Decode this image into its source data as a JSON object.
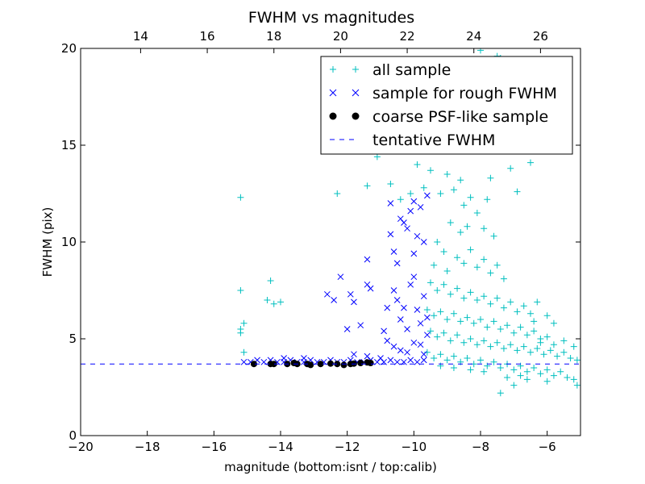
{
  "chart_data": {
    "type": "scatter",
    "title": "FWHM vs magnitudes",
    "xlabel": "magnitude (bottom:isnt / top:calib)",
    "ylabel": "FWHM (pix)",
    "xlim": [
      -20,
      -5
    ],
    "ylim": [
      0,
      20
    ],
    "x_ticks": [
      -20,
      -18,
      -16,
      -14,
      -12,
      -10,
      -8,
      -6
    ],
    "y_ticks": [
      0,
      5,
      10,
      15,
      20
    ],
    "top_axis": {
      "offset_from_bottom": 32.2,
      "ticks": [
        14,
        16,
        18,
        20,
        22,
        24,
        26
      ]
    },
    "grid": false,
    "legend_position": "top-right",
    "tentative_fwhm": 3.7,
    "series": [
      {
        "name": "all sample",
        "marker": "+",
        "color": "#00bfbf",
        "points": [
          [
            -15.2,
            12.3
          ],
          [
            -15.2,
            7.5
          ],
          [
            -15.1,
            5.8
          ],
          [
            -15.2,
            5.5
          ],
          [
            -15.2,
            5.3
          ],
          [
            -15.1,
            4.3
          ],
          [
            -14.3,
            8.0
          ],
          [
            -14.4,
            7.0
          ],
          [
            -14.2,
            6.8
          ],
          [
            -14.0,
            6.9
          ],
          [
            -12.3,
            12.5
          ],
          [
            -11.4,
            12.9
          ],
          [
            -11.1,
            14.4
          ],
          [
            -10.7,
            13.0
          ],
          [
            -10.6,
            15.0
          ],
          [
            -10.3,
            14.8
          ],
          [
            -10.1,
            12.5
          ],
          [
            -10.4,
            12.2
          ],
          [
            -9.9,
            14.0
          ],
          [
            -9.7,
            12.8
          ],
          [
            -9.5,
            13.7
          ],
          [
            -9.2,
            12.5
          ],
          [
            -9.0,
            13.5
          ],
          [
            -8.8,
            12.7
          ],
          [
            -8.6,
            13.2
          ],
          [
            -8.5,
            11.9
          ],
          [
            -8.3,
            12.3
          ],
          [
            -8.2,
            14.7
          ],
          [
            -8.0,
            19.9
          ],
          [
            -7.8,
            12.2
          ],
          [
            -7.7,
            13.3
          ],
          [
            -7.5,
            19.6
          ],
          [
            -7.4,
            19.5
          ],
          [
            -7.1,
            13.8
          ],
          [
            -6.9,
            12.6
          ],
          [
            -6.5,
            14.1
          ],
          [
            -8.9,
            11.0
          ],
          [
            -8.6,
            10.5
          ],
          [
            -8.4,
            10.8
          ],
          [
            -8.1,
            11.5
          ],
          [
            -7.9,
            10.7
          ],
          [
            -7.6,
            10.3
          ],
          [
            -9.3,
            10.0
          ],
          [
            -9.1,
            9.5
          ],
          [
            -9.4,
            8.8
          ],
          [
            -9.0,
            8.5
          ],
          [
            -8.7,
            9.2
          ],
          [
            -8.5,
            8.9
          ],
          [
            -8.3,
            9.6
          ],
          [
            -8.1,
            8.7
          ],
          [
            -7.9,
            9.1
          ],
          [
            -7.7,
            8.4
          ],
          [
            -7.5,
            8.8
          ],
          [
            -7.3,
            8.1
          ],
          [
            -9.5,
            7.9
          ],
          [
            -9.3,
            7.5
          ],
          [
            -9.1,
            7.8
          ],
          [
            -8.9,
            7.3
          ],
          [
            -8.7,
            7.6
          ],
          [
            -8.5,
            7.1
          ],
          [
            -8.3,
            7.4
          ],
          [
            -8.1,
            7.0
          ],
          [
            -7.9,
            7.2
          ],
          [
            -7.7,
            6.8
          ],
          [
            -7.5,
            7.1
          ],
          [
            -7.3,
            6.6
          ],
          [
            -7.1,
            6.9
          ],
          [
            -6.9,
            6.4
          ],
          [
            -6.7,
            6.7
          ],
          [
            -6.5,
            6.3
          ],
          [
            -9.6,
            6.5
          ],
          [
            -9.4,
            6.2
          ],
          [
            -9.2,
            6.4
          ],
          [
            -9.0,
            6.0
          ],
          [
            -8.8,
            6.3
          ],
          [
            -8.6,
            5.9
          ],
          [
            -8.4,
            6.1
          ],
          [
            -8.2,
            5.8
          ],
          [
            -8.0,
            6.0
          ],
          [
            -7.8,
            5.6
          ],
          [
            -7.6,
            5.9
          ],
          [
            -7.4,
            5.5
          ],
          [
            -7.2,
            5.7
          ],
          [
            -7.0,
            5.3
          ],
          [
            -6.8,
            5.6
          ],
          [
            -6.6,
            5.2
          ],
          [
            -6.4,
            5.4
          ],
          [
            -6.2,
            5.0
          ],
          [
            -9.5,
            5.4
          ],
          [
            -9.3,
            5.1
          ],
          [
            -9.1,
            5.3
          ],
          [
            -8.9,
            4.9
          ],
          [
            -8.7,
            5.2
          ],
          [
            -8.5,
            4.8
          ],
          [
            -8.3,
            5.0
          ],
          [
            -8.1,
            4.7
          ],
          [
            -7.9,
            4.9
          ],
          [
            -7.7,
            4.6
          ],
          [
            -7.5,
            4.8
          ],
          [
            -7.3,
            4.5
          ],
          [
            -7.1,
            4.7
          ],
          [
            -6.9,
            4.4
          ],
          [
            -6.7,
            4.6
          ],
          [
            -6.5,
            4.3
          ],
          [
            -6.3,
            4.5
          ],
          [
            -6.1,
            4.2
          ],
          [
            -5.9,
            4.4
          ],
          [
            -5.7,
            4.1
          ],
          [
            -5.5,
            4.3
          ],
          [
            -5.3,
            4.0
          ],
          [
            -5.1,
            3.9
          ],
          [
            -9.6,
            4.3
          ],
          [
            -9.4,
            4.0
          ],
          [
            -9.2,
            4.2
          ],
          [
            -9.0,
            3.9
          ],
          [
            -8.8,
            4.1
          ],
          [
            -8.6,
            3.8
          ],
          [
            -8.4,
            4.0
          ],
          [
            -8.2,
            3.7
          ],
          [
            -8.0,
            3.9
          ],
          [
            -7.8,
            3.6
          ],
          [
            -7.6,
            3.8
          ],
          [
            -7.4,
            3.5
          ],
          [
            -7.2,
            3.7
          ],
          [
            -7.0,
            3.4
          ],
          [
            -6.8,
            3.6
          ],
          [
            -6.6,
            3.3
          ],
          [
            -6.4,
            3.5
          ],
          [
            -6.2,
            3.2
          ],
          [
            -6.0,
            3.4
          ],
          [
            -5.8,
            3.1
          ],
          [
            -5.6,
            3.3
          ],
          [
            -5.4,
            3.0
          ],
          [
            -5.2,
            2.9
          ],
          [
            -7.4,
            2.2
          ],
          [
            -7.0,
            2.6
          ],
          [
            -6.6,
            2.9
          ],
          [
            -6.0,
            2.8
          ],
          [
            -5.1,
            2.6
          ],
          [
            -6.2,
            4.8
          ],
          [
            -6.0,
            5.1
          ],
          [
            -5.8,
            4.7
          ],
          [
            -6.4,
            5.9
          ],
          [
            -6.0,
            6.2
          ],
          [
            -6.3,
            6.9
          ],
          [
            -5.8,
            5.8
          ],
          [
            -5.5,
            4.9
          ],
          [
            -5.2,
            4.6
          ],
          [
            -7.2,
            3.0
          ],
          [
            -6.8,
            3.1
          ],
          [
            -7.9,
            3.3
          ],
          [
            -8.3,
            3.4
          ],
          [
            -8.8,
            3.5
          ],
          [
            -9.2,
            3.6
          ]
        ]
      },
      {
        "name": "sample for rough FWHM",
        "marker": "x",
        "color": "#0000ff",
        "points": [
          [
            -15.1,
            3.8
          ],
          [
            -14.9,
            3.8
          ],
          [
            -14.7,
            3.9
          ],
          [
            -14.5,
            3.8
          ],
          [
            -14.3,
            3.9
          ],
          [
            -14.1,
            3.8
          ],
          [
            -13.9,
            3.8
          ],
          [
            -13.7,
            3.9
          ],
          [
            -13.5,
            3.8
          ],
          [
            -13.3,
            3.8
          ],
          [
            -13.1,
            3.9
          ],
          [
            -12.9,
            3.8
          ],
          [
            -12.7,
            3.8
          ],
          [
            -12.5,
            3.9
          ],
          [
            -12.3,
            3.8
          ],
          [
            -12.1,
            3.8
          ],
          [
            -11.9,
            3.9
          ],
          [
            -11.7,
            3.8
          ],
          [
            -11.5,
            3.8
          ],
          [
            -11.3,
            3.9
          ],
          [
            -11.1,
            3.8
          ],
          [
            -10.9,
            3.8
          ],
          [
            -10.7,
            3.9
          ],
          [
            -10.5,
            3.8
          ],
          [
            -10.3,
            3.8
          ],
          [
            -10.1,
            3.9
          ],
          [
            -9.9,
            3.8
          ],
          [
            -9.7,
            3.9
          ],
          [
            -13.9,
            4.0
          ],
          [
            -13.3,
            4.0
          ],
          [
            -12.6,
            7.3
          ],
          [
            -12.4,
            7.0
          ],
          [
            -12.2,
            8.2
          ],
          [
            -11.9,
            7.3
          ],
          [
            -11.8,
            6.9
          ],
          [
            -11.6,
            5.7
          ],
          [
            -11.4,
            7.8
          ],
          [
            -11.3,
            7.6
          ],
          [
            -11.4,
            9.1
          ],
          [
            -12.0,
            5.5
          ],
          [
            -11.8,
            4.2
          ],
          [
            -11.4,
            4.1
          ],
          [
            -11.0,
            4.0
          ],
          [
            -10.9,
            5.4
          ],
          [
            -10.8,
            6.6
          ],
          [
            -10.7,
            10.4
          ],
          [
            -10.6,
            9.5
          ],
          [
            -10.5,
            8.9
          ],
          [
            -10.4,
            11.2
          ],
          [
            -10.3,
            11.0
          ],
          [
            -10.2,
            10.7
          ],
          [
            -10.1,
            11.6
          ],
          [
            -10.0,
            9.4
          ],
          [
            -9.9,
            10.3
          ],
          [
            -9.8,
            11.8
          ],
          [
            -9.7,
            10.0
          ],
          [
            -10.6,
            7.5
          ],
          [
            -10.5,
            7.0
          ],
          [
            -10.4,
            6.0
          ],
          [
            -10.3,
            6.6
          ],
          [
            -10.2,
            5.5
          ],
          [
            -10.1,
            7.8
          ],
          [
            -10.0,
            8.2
          ],
          [
            -9.9,
            6.5
          ],
          [
            -9.8,
            5.8
          ],
          [
            -9.7,
            7.2
          ],
          [
            -10.8,
            4.9
          ],
          [
            -10.6,
            4.6
          ],
          [
            -10.4,
            4.4
          ],
          [
            -10.2,
            4.3
          ],
          [
            -10.0,
            4.8
          ],
          [
            -9.8,
            4.7
          ],
          [
            -9.6,
            6.1
          ],
          [
            -9.6,
            5.2
          ],
          [
            -10.7,
            12.0
          ],
          [
            -10.0,
            12.1
          ],
          [
            -9.6,
            12.4
          ],
          [
            -9.7,
            4.2
          ]
        ]
      },
      {
        "name": "coarse PSF-like sample",
        "marker": "o",
        "color": "#000000",
        "points": [
          [
            -14.8,
            3.7
          ],
          [
            -14.3,
            3.7
          ],
          [
            -14.2,
            3.7
          ],
          [
            -13.8,
            3.7
          ],
          [
            -13.6,
            3.75
          ],
          [
            -13.5,
            3.7
          ],
          [
            -13.2,
            3.7
          ],
          [
            -13.1,
            3.65
          ],
          [
            -12.8,
            3.7
          ],
          [
            -12.5,
            3.72
          ],
          [
            -12.3,
            3.7
          ],
          [
            -12.1,
            3.65
          ],
          [
            -11.9,
            3.7
          ],
          [
            -11.8,
            3.72
          ],
          [
            -11.6,
            3.75
          ],
          [
            -11.4,
            3.78
          ],
          [
            -11.3,
            3.75
          ]
        ]
      },
      {
        "name": "tentative FWHM",
        "marker": "dashed-line",
        "color": "#0000ff",
        "points": []
      }
    ]
  }
}
